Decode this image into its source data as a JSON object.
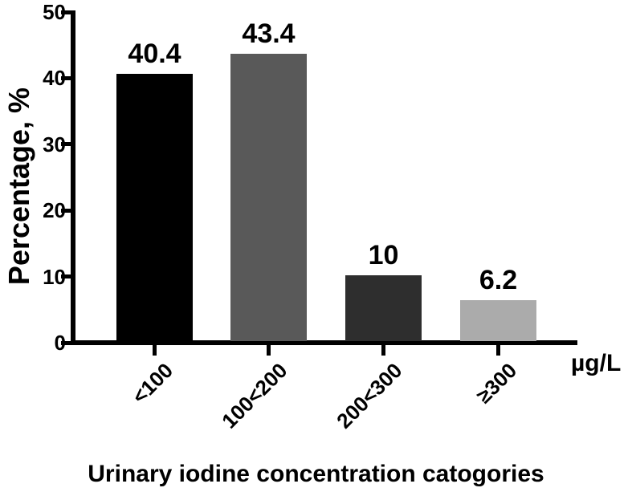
{
  "chart_data": {
    "type": "bar",
    "title": "",
    "xlabel": "Urinary iodine concentration catogories",
    "ylabel": "Percentage, %",
    "unit_label": "µg/L",
    "categories": [
      "<100",
      "100<200",
      "200<300",
      "≥300"
    ],
    "values": [
      40.4,
      43.4,
      10,
      6.2
    ],
    "value_labels": [
      "40.4",
      "43.4",
      "10",
      "6.2"
    ],
    "bar_colors": [
      "#000000",
      "#595959",
      "#2e2e2e",
      "#ababab"
    ],
    "ylim": [
      0,
      50
    ],
    "yticks": [
      0,
      10,
      20,
      30,
      40,
      50
    ],
    "ytick_labels": [
      "0",
      "10",
      "20",
      "30",
      "40",
      "50"
    ],
    "grid": false,
    "legend": "none",
    "axis_color": "#000000"
  }
}
